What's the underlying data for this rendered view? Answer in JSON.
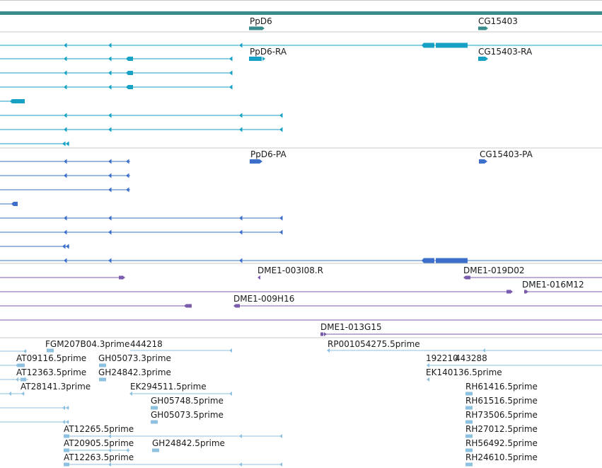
{
  "colors": {
    "gene": "#3a8c8c",
    "mrna": "#17a1c4",
    "protein": "#3b6fc9",
    "insertion": "#7a5cad",
    "est": "#8ec0e0",
    "divider": "#c8c8c8"
  },
  "tracks": {
    "gene": {
      "name": "gene-track",
      "labels": [
        "PpD6",
        "CG15403"
      ]
    },
    "transcript": {
      "name": "transcript-track",
      "labels": [
        "PpD6-RA",
        "CG15403-RA"
      ]
    },
    "protein": {
      "name": "protein-track",
      "labels": [
        "PpD6-PA",
        "CG15403-PA"
      ]
    },
    "insertion": {
      "name": "insertion-track",
      "labels": [
        "DME1-003I08.R",
        "DME1-019D02",
        "DME1-016M12",
        "DME1-009H16",
        "DME1-013G15"
      ]
    },
    "est": {
      "name": "est-track",
      "labels": [
        "FGM207B04.3prime",
        "444218",
        "RP001054275.5prime",
        "AT09116.5prime",
        "GH05073.3prime",
        "192210",
        "443288",
        "AT12363.5prime",
        "GH24842.3prime",
        "EK140136.5prime",
        "AT28141.3prime",
        "EK294511.5prime",
        "RH61416.5prime",
        "GH05748.5prime",
        "RH61516.5prime",
        "GH05073.5prime",
        "RH73506.5prime",
        "AT12265.5prime",
        "RH27012.5prime",
        "AT20905.5prime",
        "GH24842.5prime",
        "RH56492.5prime",
        "AT12263.5prime",
        "RH24610.5prime"
      ]
    }
  }
}
